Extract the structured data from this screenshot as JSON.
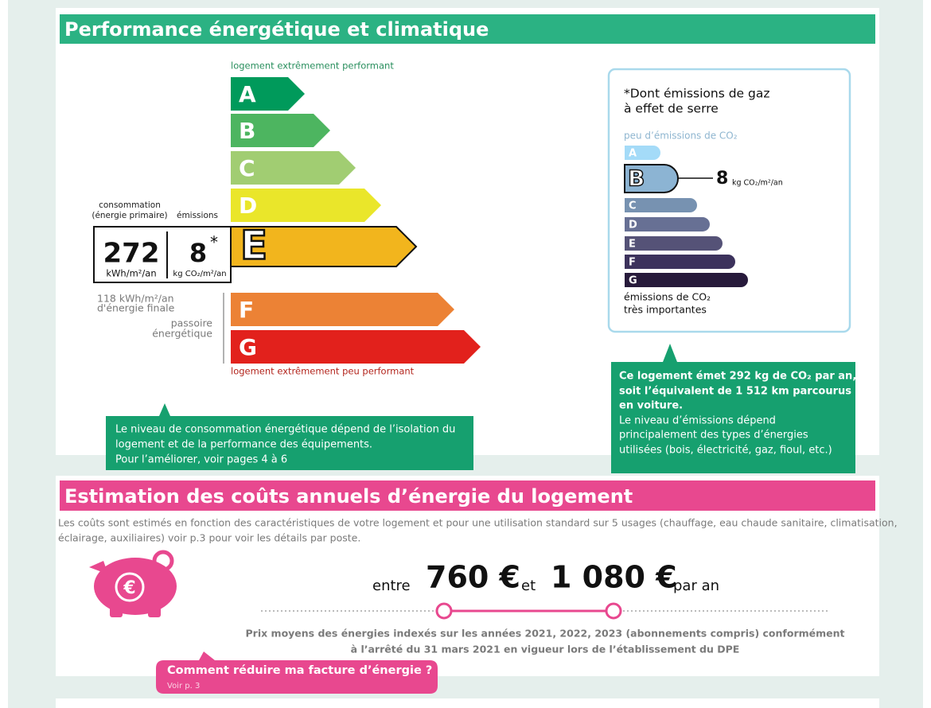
{
  "energy": {
    "title": "Performance énergétique et climatique",
    "top_label": "logement extrêmement performant",
    "bottom_label": "logement extrêmement peu performant",
    "classes": [
      "A",
      "B",
      "C",
      "D",
      "E",
      "F",
      "G"
    ],
    "consumption_label": [
      "consommation",
      "(énergie primaire)"
    ],
    "emissions_label": "émissions",
    "consumption_value": 272,
    "consumption_unit": "kWh/m²/an",
    "emissions_value": 8,
    "emissions_mark": "*",
    "emissions_unit": "kg CO₂/m²/an",
    "final_energy": [
      "118 kWh/m²/an",
      "d'énergie finale"
    ],
    "passoire": [
      "passoire",
      "énergétique"
    ],
    "note": [
      "Le niveau de consommation énergétique dépend de l’isolation du",
      "logement et de la performance des équipements.",
      "Pour l’améliorer, voir pages 4 à 6"
    ]
  },
  "ghg": {
    "title": [
      "*Dont émissions de gaz",
      "à effet de serre"
    ],
    "top_label": "peu d’émissions de CO₂",
    "classes": [
      "A",
      "B",
      "C",
      "D",
      "E",
      "F",
      "G"
    ],
    "value": 8,
    "unit": "kg CO₂/m²/an",
    "bottom_label": [
      "émissions de CO₂",
      "très importantes"
    ],
    "note_bold": [
      "Ce logement émet 292 kg de CO₂ par an,",
      "soit l’équivalent de 1 512 km parcourus",
      "en voiture."
    ],
    "note": [
      "Le niveau d’émissions dépend",
      "principalement des types d’énergies",
      "utilisées (bois, électricité, gaz, fioul, etc.)"
    ]
  },
  "costs": {
    "title": "Estimation des coûts annuels d’énergie du logement",
    "description": [
      "Les coûts sont estimés en fonction des caractéristiques de votre logement et pour une utilisation standard sur 5 usages (chauffage, eau chaude sanitaire, climatisation,",
      "éclairage, auxiliaires) voir p.3 pour voir les détails par poste."
    ],
    "icon_label": "€",
    "from_word": "entre",
    "low": "760 €",
    "and_word": "et",
    "high": "1 080 €",
    "per_year": "par an",
    "footnote": [
      "Prix moyens des énergies indexés sur les années 2021, 2022, 2023 (abonnements compris) conformément",
      "à l’arrêté du 31 mars 2021 en vigueur lors de l’établissement du DPE"
    ],
    "tip": "Comment réduire ma facture d’énergie ?",
    "tip_ref": "Voir p. 3"
  }
}
